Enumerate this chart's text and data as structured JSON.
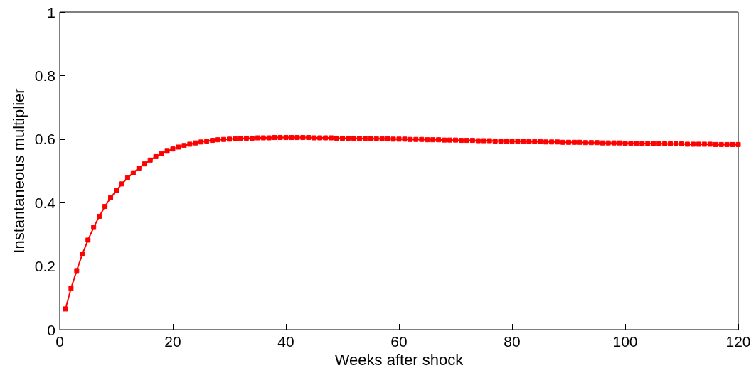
{
  "chart_data": {
    "type": "line",
    "xlabel": "Weeks after shock",
    "ylabel": "Instantaneous multiplier",
    "x": [
      1,
      2,
      3,
      4,
      5,
      6,
      7,
      8,
      9,
      10,
      11,
      12,
      13,
      14,
      15,
      16,
      17,
      18,
      19,
      20,
      21,
      22,
      23,
      24,
      25,
      26,
      27,
      28,
      29,
      30,
      31,
      32,
      33,
      34,
      35,
      36,
      37,
      38,
      39,
      40,
      41,
      42,
      43,
      44,
      45,
      46,
      47,
      48,
      49,
      50,
      51,
      52,
      53,
      54,
      55,
      56,
      57,
      58,
      59,
      60,
      61,
      62,
      63,
      64,
      65,
      66,
      67,
      68,
      69,
      70,
      71,
      72,
      73,
      74,
      75,
      76,
      77,
      78,
      79,
      80,
      81,
      82,
      83,
      84,
      85,
      86,
      87,
      88,
      89,
      90,
      91,
      92,
      93,
      94,
      95,
      96,
      97,
      98,
      99,
      100,
      101,
      102,
      103,
      104,
      105,
      106,
      107,
      108,
      109,
      110,
      111,
      112,
      113,
      114,
      115,
      116,
      117,
      118,
      119,
      120
    ],
    "series": [
      {
        "color": "#ff0000",
        "values": [
          0.065,
          0.13,
          0.186,
          0.238,
          0.282,
          0.322,
          0.357,
          0.388,
          0.415,
          0.438,
          0.459,
          0.478,
          0.494,
          0.509,
          0.522,
          0.534,
          0.545,
          0.554,
          0.562,
          0.569,
          0.575,
          0.58,
          0.584,
          0.588,
          0.591,
          0.594,
          0.596,
          0.598,
          0.599,
          0.6,
          0.601,
          0.602,
          0.603,
          0.603,
          0.604,
          0.604,
          0.604,
          0.605,
          0.605,
          0.605,
          0.605,
          0.605,
          0.605,
          0.605,
          0.604,
          0.604,
          0.604,
          0.604,
          0.603,
          0.603,
          0.603,
          0.603,
          0.602,
          0.602,
          0.602,
          0.601,
          0.601,
          0.601,
          0.6,
          0.6,
          0.6,
          0.599,
          0.599,
          0.599,
          0.598,
          0.598,
          0.598,
          0.597,
          0.597,
          0.597,
          0.596,
          0.596,
          0.596,
          0.595,
          0.595,
          0.595,
          0.594,
          0.594,
          0.594,
          0.593,
          0.593,
          0.593,
          0.592,
          0.592,
          0.592,
          0.591,
          0.591,
          0.591,
          0.59,
          0.59,
          0.59,
          0.59,
          0.589,
          0.589,
          0.589,
          0.588,
          0.588,
          0.588,
          0.588,
          0.587,
          0.587,
          0.587,
          0.586,
          0.586,
          0.586,
          0.586,
          0.585,
          0.585,
          0.585,
          0.585,
          0.584,
          0.584,
          0.584,
          0.584,
          0.584,
          0.583,
          0.583,
          0.583,
          0.583,
          0.583
        ]
      }
    ],
    "xlim": [
      0,
      120
    ],
    "xticks": [
      0,
      20,
      40,
      60,
      80,
      100,
      120
    ],
    "ylim": [
      0,
      1
    ],
    "yticks": [
      0,
      0.2,
      0.4,
      0.6,
      0.8,
      1
    ],
    "grid": false,
    "marker": "square",
    "line_style": "solid"
  }
}
